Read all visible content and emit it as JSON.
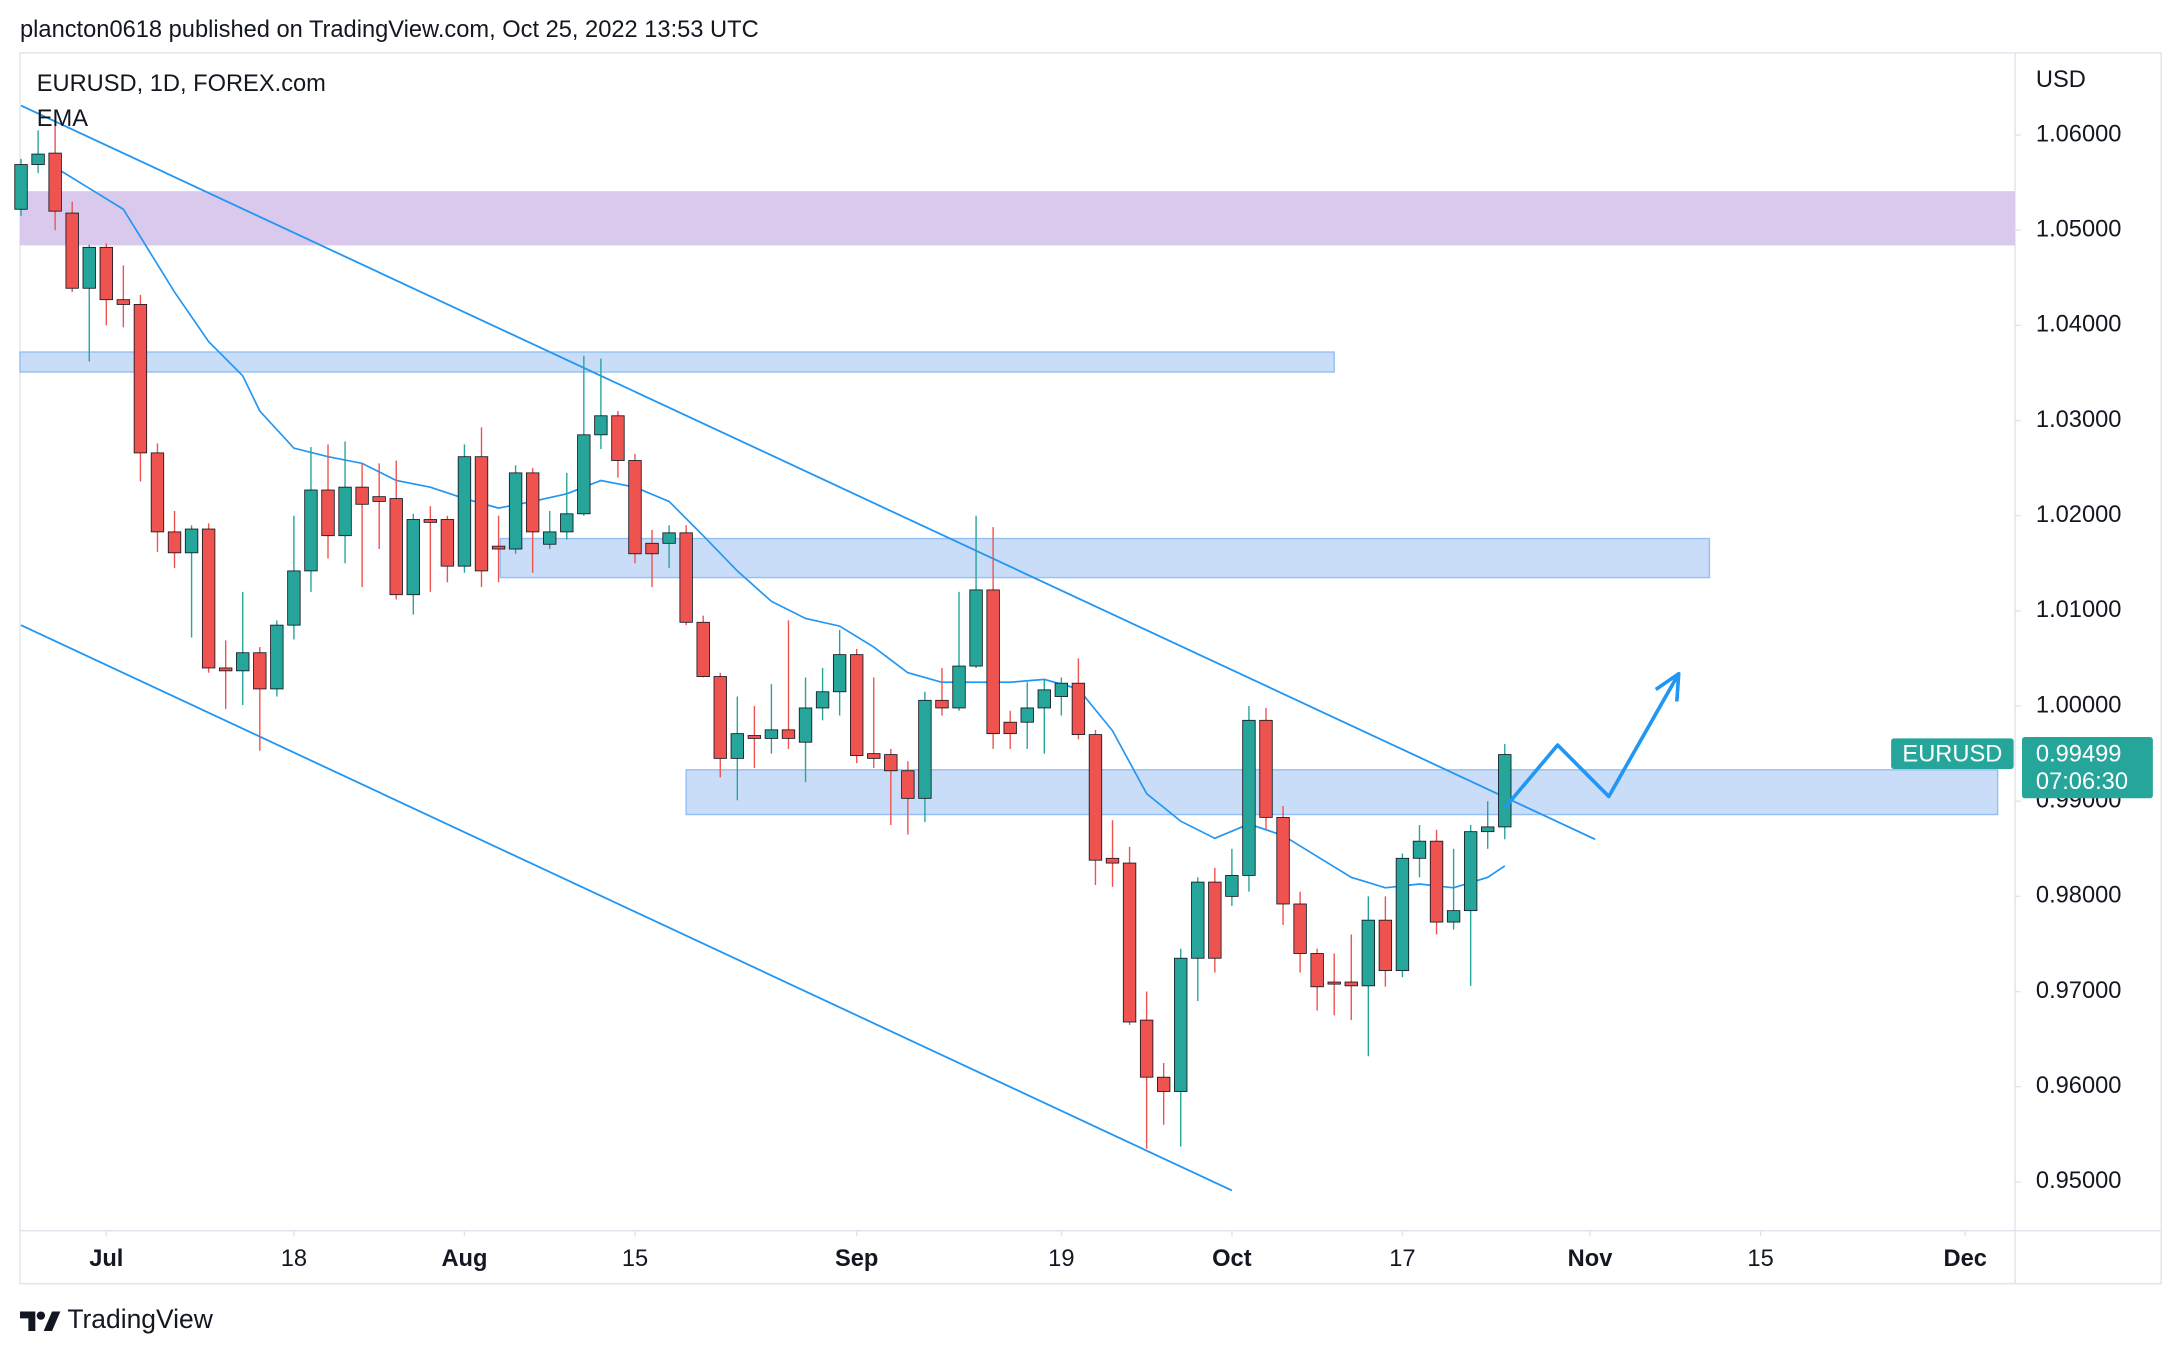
{
  "header": "plancton0618 published on TradingView.com, Oct 25, 2022 13:53 UTC",
  "footer": "TradingView",
  "chart_data": {
    "type": "candlestick",
    "title": "EURUSD, 1D, FOREX.com",
    "indicator": "EMA",
    "axis_unit": "USD",
    "up_color": "#26a69a",
    "down_color": "#ef5350",
    "x": [
      -5,
      -4,
      -3,
      -2,
      -1,
      0,
      1,
      2,
      3,
      4,
      5,
      6,
      7,
      8,
      9,
      10,
      11,
      12,
      13,
      14,
      15,
      16,
      17,
      18,
      19,
      20,
      21,
      22,
      23,
      24,
      25,
      26,
      27,
      28,
      29,
      30,
      31,
      32,
      33,
      34,
      35,
      36,
      37,
      38,
      39,
      40,
      41,
      42,
      43,
      44,
      45,
      46,
      47,
      48,
      49,
      50,
      51,
      52,
      53,
      54,
      55,
      56,
      57,
      58,
      59,
      60,
      61,
      62,
      63,
      64,
      65,
      66,
      67,
      68,
      69,
      70,
      71,
      72,
      73,
      74,
      75,
      76,
      77,
      78,
      79,
      80,
      81,
      82
    ],
    "open": [
      1.0522,
      1.0569,
      1.0581,
      1.0518,
      1.0439,
      1.0482,
      1.0427,
      1.0422,
      1.0266,
      1.0183,
      1.0161,
      1.0186,
      1.004,
      1.0037,
      1.0056,
      1.0018,
      1.0085,
      1.0142,
      1.0227,
      1.0179,
      1.023,
      1.022,
      1.0218,
      1.0117,
      1.0196,
      1.0196,
      1.0147,
      1.0262,
      1.0168,
      1.0165,
      1.0245,
      1.017,
      1.0183,
      1.0202,
      1.0285,
      1.0305,
      1.0258,
      1.0171,
      1.0171,
      1.0182,
      1.0088,
      1.0031,
      0.9945,
      0.9969,
      0.9966,
      0.9975,
      0.9962,
      0.9998,
      1.0015,
      1.0054,
      0.995,
      0.9949,
      0.9932,
      0.9903,
      1.0006,
      0.9998,
      1.0042,
      1.0122,
      0.9983,
      0.9983,
      0.9998,
      1.001,
      1.0024,
      0.997,
      0.984,
      0.9835,
      0.967,
      0.961,
      0.9595,
      0.9735,
      0.9815,
      0.98,
      0.9822,
      0.9985,
      0.9883,
      0.9792,
      0.974,
      0.971,
      0.971,
      0.9706,
      0.9775,
      0.9722,
      0.984,
      0.9858,
      0.9773,
      0.9785,
      0.9868,
      0.9873
    ],
    "high": [
      1.0575,
      1.0605,
      1.0615,
      1.053,
      1.0485,
      1.0486,
      1.0463,
      1.0432,
      1.0276,
      1.0205,
      1.019,
      1.0192,
      1.0069,
      1.012,
      1.0062,
      1.009,
      1.02,
      1.0272,
      1.0275,
      1.0278,
      1.0255,
      1.0255,
      1.0258,
      1.0202,
      1.021,
      1.02,
      1.0275,
      1.0293,
      1.02,
      1.0253,
      1.025,
      1.0205,
      1.0245,
      1.0368,
      1.0365,
      1.031,
      1.0265,
      1.0185,
      1.019,
      1.019,
      1.0095,
      1.0035,
      1.001,
      1.0,
      1.0023,
      1.009,
      1.003,
      1.004,
      1.008,
      1.006,
      1.003,
      0.9955,
      0.9942,
      1.0015,
      1.004,
      1.012,
      1.02,
      1.0188,
      0.9995,
      1.0025,
      1.0028,
      1.003,
      1.005,
      0.9975,
      0.988,
      0.9852,
      0.97,
      0.9625,
      0.9745,
      0.982,
      0.983,
      0.985,
      1.0,
      0.9998,
      0.9895,
      0.9805,
      0.9745,
      0.974,
      0.976,
      0.98,
      0.98,
      0.9845,
      0.9875,
      0.987,
      0.985,
      0.9875,
      0.99,
      0.996
    ],
    "low": [
      1.0515,
      1.056,
      1.05,
      1.0435,
      1.0362,
      1.04,
      1.0398,
      1.0236,
      1.0162,
      1.0145,
      1.0072,
      1.0035,
      0.9997,
      1.0001,
      0.9953,
      1.001,
      1.007,
      1.012,
      1.0155,
      1.015,
      1.0125,
      1.0165,
      1.0112,
      1.0096,
      1.012,
      1.013,
      1.014,
      1.0125,
      1.013,
      1.016,
      1.014,
      1.0165,
      1.0175,
      1.02,
      1.027,
      1.024,
      1.015,
      1.0125,
      1.0145,
      1.0085,
      1.003,
      0.9925,
      0.9901,
      0.9935,
      0.995,
      0.9955,
      0.992,
      0.9985,
      0.999,
      0.994,
      0.9935,
      0.9875,
      0.9865,
      0.9878,
      0.999,
      0.9995,
      1.004,
      0.9955,
      0.9955,
      0.9955,
      0.995,
      0.999,
      0.9965,
      0.9812,
      0.981,
      0.9665,
      0.9535,
      0.956,
      0.9537,
      0.969,
      0.972,
      0.979,
      0.9805,
      0.987,
      0.977,
      0.972,
      0.968,
      0.9675,
      0.967,
      0.9632,
      0.9705,
      0.9715,
      0.982,
      0.976,
      0.9765,
      0.9706,
      0.985,
      0.986
    ],
    "close": [
      1.0569,
      1.058,
      1.052,
      1.0439,
      1.0482,
      1.0427,
      1.0422,
      1.0266,
      1.0183,
      1.0161,
      1.0186,
      1.004,
      1.0037,
      1.0056,
      1.0018,
      1.0085,
      1.0142,
      1.0227,
      1.0179,
      1.023,
      1.0212,
      1.0215,
      1.0117,
      1.0196,
      1.0193,
      1.0147,
      1.0262,
      1.0142,
      1.0165,
      1.0245,
      1.0183,
      1.0183,
      1.0202,
      1.0285,
      1.0305,
      1.0258,
      1.016,
      1.016,
      1.0182,
      1.0088,
      1.0031,
      0.9945,
      0.9971,
      0.9966,
      0.9975,
      0.9966,
      0.9998,
      1.0015,
      1.0054,
      0.9948,
      0.9945,
      0.9932,
      0.9903,
      1.0006,
      0.9998,
      1.0042,
      1.0122,
      0.9971,
      0.9971,
      0.9998,
      1.0017,
      1.0024,
      0.997,
      0.9838,
      0.9835,
      0.9668,
      0.961,
      0.9595,
      0.9735,
      0.9815,
      0.9735,
      0.9822,
      0.9985,
      0.9883,
      0.9792,
      0.974,
      0.9705,
      0.9708,
      0.9706,
      0.9775,
      0.9722,
      0.984,
      0.9858,
      0.9773,
      0.9785,
      0.9868,
      0.9873,
      0.9949
    ],
    "ema": {
      "color": "#2196f3",
      "x": [
        -3,
        -1,
        1,
        2,
        4,
        6,
        8,
        9,
        11,
        13,
        15,
        17,
        19,
        21,
        23,
        25,
        27,
        29,
        31,
        33,
        35,
        37,
        39,
        41,
        43,
        45,
        47,
        49,
        51,
        53,
        55,
        57,
        59,
        61,
        63,
        65,
        67,
        69,
        71,
        73,
        75,
        77,
        79,
        81,
        82
      ],
      "values": [
        1.0566,
        1.0544,
        1.0522,
        1.0493,
        1.0435,
        1.0383,
        1.0347,
        1.031,
        1.0271,
        1.0262,
        1.0255,
        1.0237,
        1.023,
        1.0218,
        1.0208,
        1.0215,
        1.0223,
        1.0237,
        1.023,
        1.0215,
        1.0179,
        1.0142,
        1.011,
        1.0092,
        1.0084,
        1.0062,
        1.0035,
        1.0025,
        1.0025,
        1.0025,
        1.0028,
        1.0018,
        0.9974,
        0.9908,
        0.9879,
        0.9861,
        0.9876,
        0.9864,
        0.9842,
        0.982,
        0.9809,
        0.9813,
        0.9809,
        0.982,
        0.9832
      ]
    },
    "zones": [
      {
        "color": "#d9c9ec",
        "x": [
          -5.06,
          111.92
        ],
        "y": [
          1.0484,
          1.0541
        ]
      },
      {
        "color": "#c9ddf8",
        "x": [
          -5.06,
          72
        ],
        "y": [
          1.0351,
          1.0372
        ]
      },
      {
        "color": "#c9ddf8",
        "x": [
          23.1,
          94
        ],
        "y": [
          1.0135,
          1.0176
        ]
      },
      {
        "color": "#c9ddf8",
        "x": [
          34,
          110.9
        ],
        "y": [
          0.9886,
          0.9933
        ]
      }
    ],
    "trend_lines": [
      {
        "color": "#2196f3",
        "x": [
          -5,
          87.3
        ],
        "y": [
          1.0631,
          0.986
        ]
      },
      {
        "color": "#2196f3",
        "x": [
          -5,
          66
        ],
        "y": [
          1.0085,
          0.9491
        ]
      }
    ],
    "projection": {
      "color": "#2196f3",
      "x": [
        82,
        85.1,
        88.1,
        92.2
      ],
      "y": [
        0.9893,
        0.9959,
        0.9905,
        1.0034
      ]
    },
    "last_price": {
      "name": "EURUSD",
      "value": 0.99499,
      "label": "0.99499",
      "countdown": "07:06:30"
    },
    "xlim": [
      -5.06,
      111.92
    ],
    "ylim": [
      0.94487,
      1.06863
    ],
    "xticks": [
      {
        "value": 0,
        "label": "Jul"
      },
      {
        "value": 11,
        "label": "18"
      },
      {
        "value": 21,
        "label": "Aug"
      },
      {
        "value": 31,
        "label": "15"
      },
      {
        "value": 44,
        "label": "Sep"
      },
      {
        "value": 56,
        "label": "19"
      },
      {
        "value": 66,
        "label": "Oct"
      },
      {
        "value": 76,
        "label": "17"
      },
      {
        "value": 87,
        "label": "Nov"
      },
      {
        "value": 97,
        "label": "15"
      },
      {
        "value": 109,
        "label": "Dec"
      }
    ],
    "yticks": [
      {
        "value": 1.06,
        "label": "1.06000"
      },
      {
        "value": 1.05,
        "label": "1.05000"
      },
      {
        "value": 1.04,
        "label": "1.04000"
      },
      {
        "value": 1.03,
        "label": "1.03000"
      },
      {
        "value": 1.02,
        "label": "1.02000"
      },
      {
        "value": 1.01,
        "label": "1.01000"
      },
      {
        "value": 1.0,
        "label": "1.00000"
      },
      {
        "value": 0.99,
        "label": "0.99000"
      },
      {
        "value": 0.98,
        "label": "0.98000"
      },
      {
        "value": 0.97,
        "label": "0.97000"
      },
      {
        "value": 0.96,
        "label": "0.96000"
      },
      {
        "value": 0.95,
        "label": "0.95000"
      }
    ]
  }
}
